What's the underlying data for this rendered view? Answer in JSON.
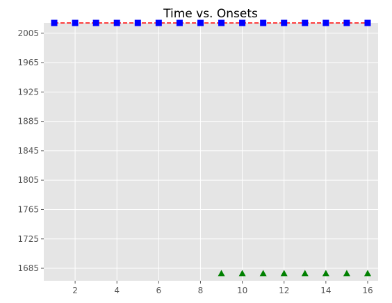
{
  "chart_data": {
    "type": "line",
    "title": "Time vs. Onsets",
    "xlabel": "",
    "ylabel": "",
    "xlim": [
      0.5,
      16.5
    ],
    "ylim": [
      1668,
      2019
    ],
    "x_ticks": [
      2,
      4,
      6,
      8,
      10,
      12,
      14,
      16
    ],
    "x_tick_labels": [
      "2",
      "4",
      "6",
      "8",
      "10",
      "12",
      "14",
      "16"
    ],
    "y_ticks": [
      1685,
      1725,
      1765,
      1805,
      1845,
      1885,
      1925,
      1965,
      2005
    ],
    "y_tick_labels": [
      "1685",
      "1725",
      "1765",
      "1805",
      "1845",
      "1885",
      "1925",
      "1965",
      "2005"
    ],
    "grid": true,
    "legend": "none",
    "style": {
      "background": "#e5e5e5",
      "grid_color": "#ffffff"
    },
    "series": [
      {
        "marker": "square",
        "line_style": "dashed",
        "line_color": "#ff0000",
        "marker_color": "#0000ff",
        "x": [
          1,
          2,
          3,
          4,
          5,
          6,
          7,
          8,
          9,
          10,
          11,
          12,
          13,
          14,
          15,
          16
        ],
        "values": [
          2019,
          2019,
          2019,
          2019,
          2019,
          2019,
          2019,
          2019,
          2019,
          2019,
          2019,
          2019,
          2019,
          2019,
          2019,
          2019
        ]
      },
      {
        "marker": "triangle",
        "line_style": "none",
        "marker_color": "#008000",
        "x": [
          9,
          10,
          11,
          12,
          13,
          14,
          15,
          16
        ],
        "values": [
          1678,
          1678,
          1678,
          1678,
          1678,
          1678,
          1678,
          1678
        ]
      }
    ]
  }
}
